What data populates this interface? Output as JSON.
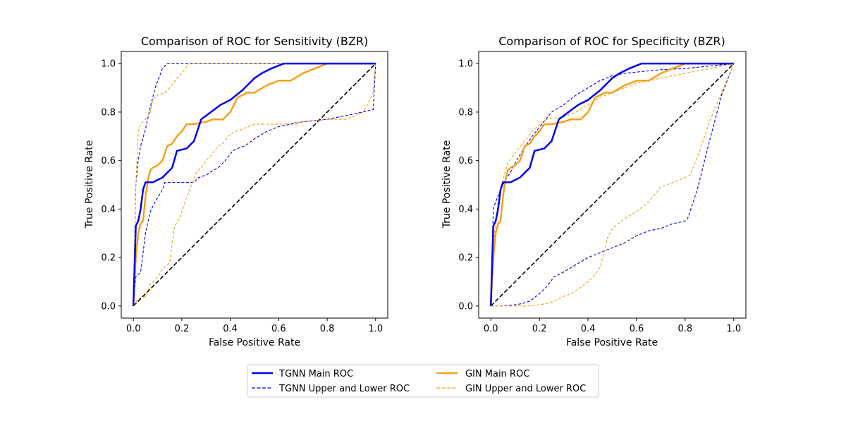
{
  "figure": {
    "background": "#ffffff"
  },
  "colors": {
    "tgnn": "#0000ee",
    "gin": "#f5a01a",
    "diagonal": "#000000"
  },
  "legend": {
    "placement": "bottom-center",
    "columns": 2,
    "entries": [
      {
        "label": "TGNN Main ROC",
        "series": "TGNN Main ROC",
        "style": "solid"
      },
      {
        "label": "GIN Main ROC",
        "series": "GIN Main ROC",
        "style": "solid"
      },
      {
        "label": "TGNN Upper and Lower ROC",
        "series": "TGNN Upper and Lower ROC",
        "style": "dashed"
      },
      {
        "label": "GIN Upper and Lower ROC",
        "series": "GIN Upper and Lower ROC",
        "style": "dashed"
      }
    ]
  },
  "chart_data": [
    {
      "type": "line",
      "title": "Comparison of ROC for Sensitivity (BZR)",
      "xlabel": "False Positive Rate",
      "ylabel": "True Positive Rate",
      "xlim": [
        -0.05,
        1.05
      ],
      "ylim": [
        -0.05,
        1.05
      ],
      "xticks": [
        "0.0",
        "0.2",
        "0.4",
        "0.6",
        "0.8",
        "1.0"
      ],
      "yticks": [
        "0.0",
        "0.2",
        "0.4",
        "0.6",
        "0.8",
        "1.0"
      ],
      "grid": false,
      "series": [
        {
          "name": "Chance",
          "color": "#000000",
          "style": "dashed",
          "x": [
            0,
            1
          ],
          "y": [
            0,
            1
          ]
        },
        {
          "name": "TGNN Upper ROC",
          "legend_group": "TGNN Upper and Lower ROC",
          "color": "#0000ee",
          "style": "dashed",
          "x": [
            0,
            0.01,
            0.02,
            0.03,
            0.05,
            0.07,
            0.09,
            0.12,
            0.14,
            0.3,
            0.6,
            1.0
          ],
          "y": [
            0,
            0.5,
            0.6,
            0.66,
            0.73,
            0.82,
            0.9,
            0.98,
            1.0,
            1.0,
            1.0,
            1.0
          ]
        },
        {
          "name": "TGNN Lower ROC",
          "legend_group": "TGNN Upper and Lower ROC",
          "color": "#0000ee",
          "style": "dashed",
          "x": [
            0,
            0.01,
            0.03,
            0.05,
            0.07,
            0.09,
            0.12,
            0.13,
            0.2,
            0.25,
            0.27,
            0.3,
            0.33,
            0.35,
            0.38,
            0.41,
            0.43,
            0.46,
            0.5,
            0.55,
            0.6,
            0.7,
            0.8,
            0.9,
            0.99,
            1.0
          ],
          "y": [
            0,
            0.12,
            0.14,
            0.3,
            0.39,
            0.43,
            0.48,
            0.51,
            0.51,
            0.51,
            0.53,
            0.54,
            0.56,
            0.57,
            0.6,
            0.64,
            0.65,
            0.66,
            0.69,
            0.72,
            0.74,
            0.76,
            0.77,
            0.79,
            0.81,
            1.0
          ]
        },
        {
          "name": "GIN Upper ROC",
          "legend_group": "GIN Upper and Lower ROC",
          "color": "#f5a01a",
          "style": "dashed",
          "x": [
            0,
            0.01,
            0.02,
            0.03,
            0.05,
            0.07,
            0.08,
            0.1,
            0.13,
            0.15,
            0.18,
            0.2,
            0.23,
            0.3,
            0.6,
            1.0
          ],
          "y": [
            0,
            0.5,
            0.72,
            0.75,
            0.77,
            0.8,
            0.85,
            0.87,
            0.88,
            0.9,
            0.94,
            0.96,
            1.0,
            1.0,
            1.0,
            1.0
          ]
        },
        {
          "name": "GIN Lower ROC",
          "legend_group": "GIN Upper and Lower ROC",
          "color": "#f5a01a",
          "style": "dashed",
          "x": [
            0,
            0.02,
            0.05,
            0.07,
            0.08,
            0.1,
            0.12,
            0.15,
            0.17,
            0.19,
            0.22,
            0.24,
            0.26,
            0.28,
            0.3,
            0.32,
            0.35,
            0.37,
            0.39,
            0.42,
            0.45,
            0.5,
            0.6,
            0.7,
            0.8,
            0.88,
            0.95,
            0.99,
            1.0
          ],
          "y": [
            0,
            0.03,
            0.04,
            0.09,
            0.1,
            0.12,
            0.15,
            0.18,
            0.33,
            0.36,
            0.45,
            0.5,
            0.55,
            0.57,
            0.6,
            0.62,
            0.66,
            0.67,
            0.7,
            0.72,
            0.73,
            0.75,
            0.75,
            0.76,
            0.77,
            0.77,
            0.8,
            0.88,
            1.0
          ]
        },
        {
          "name": "GIN Main ROC",
          "color": "#f5a01a",
          "style": "solid",
          "x": [
            0,
            0.01,
            0.02,
            0.03,
            0.04,
            0.05,
            0.06,
            0.07,
            0.08,
            0.1,
            0.12,
            0.14,
            0.16,
            0.18,
            0.2,
            0.22,
            0.25,
            0.3,
            0.33,
            0.37,
            0.4,
            0.43,
            0.47,
            0.5,
            0.55,
            0.6,
            0.65,
            0.7,
            0.75,
            0.8,
            0.85,
            0.9,
            1.0
          ],
          "y": [
            0,
            0.2,
            0.3,
            0.34,
            0.35,
            0.45,
            0.52,
            0.56,
            0.57,
            0.58,
            0.6,
            0.66,
            0.67,
            0.7,
            0.72,
            0.75,
            0.75,
            0.76,
            0.77,
            0.77,
            0.8,
            0.86,
            0.88,
            0.88,
            0.91,
            0.93,
            0.93,
            0.96,
            0.98,
            1.0,
            1.0,
            1.0,
            1.0
          ]
        },
        {
          "name": "TGNN Main ROC",
          "color": "#0000ee",
          "style": "solid",
          "x": [
            0,
            0.01,
            0.02,
            0.03,
            0.04,
            0.05,
            0.08,
            0.1,
            0.12,
            0.14,
            0.16,
            0.18,
            0.22,
            0.25,
            0.28,
            0.32,
            0.36,
            0.4,
            0.45,
            0.5,
            0.53,
            0.57,
            0.62,
            0.7,
            0.8,
            1.0
          ],
          "y": [
            0,
            0.33,
            0.35,
            0.4,
            0.48,
            0.51,
            0.51,
            0.52,
            0.53,
            0.55,
            0.57,
            0.64,
            0.65,
            0.68,
            0.77,
            0.8,
            0.83,
            0.85,
            0.89,
            0.94,
            0.96,
            0.98,
            1.0,
            1.0,
            1.0,
            1.0
          ]
        }
      ]
    },
    {
      "type": "line",
      "title": "Comparison of ROC for Specificity (BZR)",
      "xlabel": "False Positive Rate",
      "ylabel": "True Positive Rate",
      "xlim": [
        -0.05,
        1.05
      ],
      "ylim": [
        -0.05,
        1.05
      ],
      "xticks": [
        "0.0",
        "0.2",
        "0.4",
        "0.6",
        "0.8",
        "1.0"
      ],
      "yticks": [
        "0.0",
        "0.2",
        "0.4",
        "0.6",
        "0.8",
        "1.0"
      ],
      "grid": false,
      "series": [
        {
          "name": "Chance",
          "color": "#000000",
          "style": "dashed",
          "x": [
            0,
            1
          ],
          "y": [
            0,
            1
          ]
        },
        {
          "name": "TGNN Upper ROC",
          "legend_group": "TGNN Upper and Lower ROC",
          "color": "#0000ee",
          "style": "dashed",
          "x": [
            0,
            0.01,
            0.02,
            0.04,
            0.06,
            0.08,
            0.1,
            0.13,
            0.17,
            0.21,
            0.25,
            0.3,
            0.35,
            0.4,
            0.45,
            0.5,
            0.55,
            0.6,
            0.65,
            0.7,
            0.8,
            0.9,
            1.0
          ],
          "y": [
            0,
            0.4,
            0.43,
            0.48,
            0.52,
            0.55,
            0.59,
            0.64,
            0.7,
            0.75,
            0.8,
            0.83,
            0.87,
            0.9,
            0.93,
            0.95,
            0.96,
            0.965,
            0.97,
            0.975,
            0.98,
            0.99,
            1.0
          ]
        },
        {
          "name": "TGNN Lower ROC",
          "legend_group": "TGNN Upper and Lower ROC",
          "color": "#0000ee",
          "style": "dashed",
          "x": [
            0,
            0.05,
            0.1,
            0.13,
            0.16,
            0.2,
            0.23,
            0.26,
            0.3,
            0.35,
            0.4,
            0.45,
            0.5,
            0.55,
            0.6,
            0.65,
            0.7,
            0.75,
            0.8,
            0.81,
            0.85,
            0.9,
            0.95,
            1.0
          ],
          "y": [
            0,
            0,
            0.005,
            0.01,
            0.02,
            0.05,
            0.08,
            0.12,
            0.14,
            0.17,
            0.2,
            0.22,
            0.24,
            0.26,
            0.29,
            0.31,
            0.32,
            0.34,
            0.35,
            0.36,
            0.48,
            0.68,
            0.87,
            1.0
          ]
        },
        {
          "name": "GIN Upper ROC",
          "legend_group": "GIN Upper and Lower ROC",
          "color": "#f5a01a",
          "style": "dashed",
          "x": [
            0,
            0.01,
            0.02,
            0.03,
            0.05,
            0.07,
            0.1,
            0.13,
            0.17,
            0.2,
            0.23,
            0.3,
            0.35,
            0.4,
            0.45,
            0.5,
            0.55,
            0.6,
            0.7,
            0.8,
            0.9,
            1.0
          ],
          "y": [
            0,
            0.25,
            0.35,
            0.43,
            0.52,
            0.59,
            0.63,
            0.67,
            0.72,
            0.75,
            0.77,
            0.78,
            0.8,
            0.83,
            0.86,
            0.88,
            0.9,
            0.92,
            0.94,
            0.96,
            0.98,
            1.0
          ]
        },
        {
          "name": "GIN Lower ROC",
          "legend_group": "GIN Upper and Lower ROC",
          "color": "#f5a01a",
          "style": "dashed",
          "x": [
            0,
            0.05,
            0.1,
            0.15,
            0.2,
            0.23,
            0.26,
            0.3,
            0.33,
            0.36,
            0.4,
            0.43,
            0.45,
            0.46,
            0.48,
            0.5,
            0.55,
            0.6,
            0.65,
            0.7,
            0.75,
            0.8,
            0.82,
            0.86,
            0.9,
            0.95,
            1.0
          ],
          "y": [
            0,
            0,
            0,
            0,
            0.005,
            0.01,
            0.02,
            0.04,
            0.05,
            0.07,
            0.1,
            0.13,
            0.16,
            0.2,
            0.28,
            0.32,
            0.36,
            0.39,
            0.43,
            0.49,
            0.51,
            0.53,
            0.54,
            0.64,
            0.76,
            0.88,
            1.0
          ]
        },
        {
          "name": "GIN Main ROC",
          "color": "#f5a01a",
          "style": "solid",
          "x": [
            0,
            0.01,
            0.02,
            0.03,
            0.04,
            0.05,
            0.06,
            0.07,
            0.08,
            0.1,
            0.12,
            0.14,
            0.16,
            0.18,
            0.2,
            0.22,
            0.25,
            0.3,
            0.33,
            0.37,
            0.4,
            0.43,
            0.47,
            0.5,
            0.55,
            0.6,
            0.65,
            0.7,
            0.75,
            0.8,
            0.85,
            0.9,
            1.0
          ],
          "y": [
            0,
            0.2,
            0.3,
            0.34,
            0.35,
            0.45,
            0.52,
            0.56,
            0.57,
            0.58,
            0.6,
            0.66,
            0.67,
            0.7,
            0.72,
            0.75,
            0.75,
            0.76,
            0.77,
            0.77,
            0.8,
            0.86,
            0.88,
            0.88,
            0.91,
            0.93,
            0.93,
            0.96,
            0.98,
            1.0,
            1.0,
            1.0,
            1.0
          ]
        },
        {
          "name": "TGNN Main ROC",
          "color": "#0000ee",
          "style": "solid",
          "x": [
            0,
            0.01,
            0.02,
            0.03,
            0.04,
            0.05,
            0.08,
            0.1,
            0.12,
            0.14,
            0.16,
            0.18,
            0.22,
            0.25,
            0.28,
            0.32,
            0.36,
            0.4,
            0.45,
            0.5,
            0.53,
            0.57,
            0.62,
            0.7,
            0.8,
            1.0
          ],
          "y": [
            0,
            0.33,
            0.35,
            0.4,
            0.48,
            0.51,
            0.51,
            0.52,
            0.53,
            0.55,
            0.57,
            0.64,
            0.65,
            0.68,
            0.77,
            0.8,
            0.83,
            0.85,
            0.89,
            0.94,
            0.96,
            0.98,
            1.0,
            1.0,
            1.0,
            1.0
          ]
        }
      ]
    }
  ]
}
